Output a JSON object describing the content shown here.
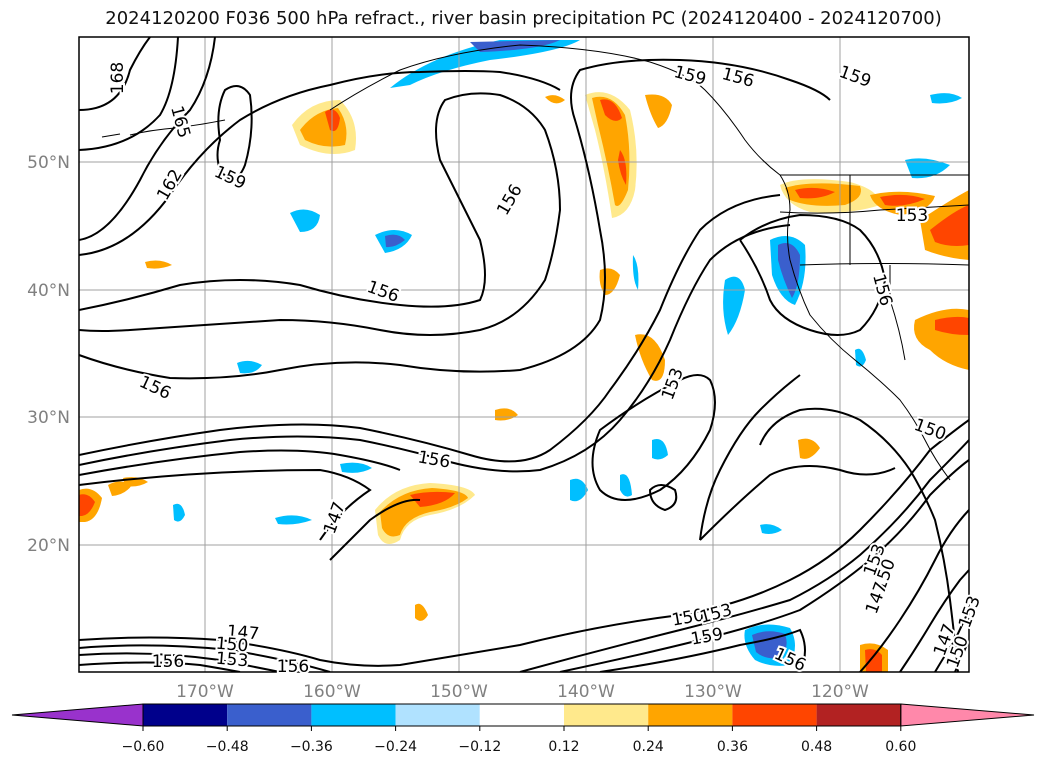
{
  "title": "2024120200 F036 500 hPa refract., river basin precipitation PC (2024120400 - 2024120700)",
  "map": {
    "lat_labels": [
      "50°N",
      "40°N",
      "30°N",
      "20°N"
    ],
    "lon_labels": [
      "170°W",
      "160°W",
      "150°W",
      "140°W",
      "130°W",
      "120°W"
    ],
    "contour_labels": [
      "168",
      "165",
      "162",
      "159",
      "159",
      "156",
      "159",
      "156",
      "156",
      "156",
      "153",
      "153",
      "156",
      "150",
      "156",
      "147",
      "147",
      "150",
      "153",
      "156",
      "156",
      "150",
      "153",
      "159",
      "156",
      "153",
      "150",
      "147",
      "147",
      "150",
      "153"
    ],
    "label_color": "#808080"
  },
  "colorbar": {
    "tick_labels": [
      "−0.60",
      "−0.48",
      "−0.36",
      "−0.24",
      "−0.12",
      "0.12",
      "0.24",
      "0.36",
      "0.48",
      "0.60"
    ],
    "colors": [
      "#9932cc",
      "#00008b",
      "#3a5fcd",
      "#00bfff",
      "#b0e2ff",
      "#ffffff",
      "#ffe98c",
      "#ffa500",
      "#ff4500",
      "#b22222",
      "#ff88aa"
    ]
  }
}
